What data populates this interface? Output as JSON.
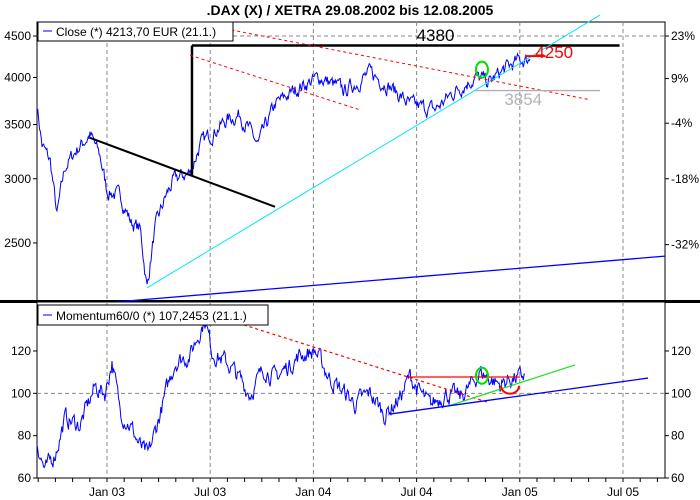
{
  "chart_data": [
    {
      "type": "line",
      "title": ".DAX (X) / XETRA 29.08.2002 bis 12.08.2005",
      "legend": "Close (*) 4213,70 EUR (21.1.)",
      "legend_placement": "top-left",
      "x_unit": "months since Jan 2003",
      "x_ticks": [
        {
          "m": 0,
          "label": "Jan 03"
        },
        {
          "m": 6,
          "label": "Jul 03"
        },
        {
          "m": 12,
          "label": "Jan 04"
        },
        {
          "m": 18,
          "label": "Jul 04"
        },
        {
          "m": 24,
          "label": "Jan 05"
        },
        {
          "m": 30,
          "label": "Jul 05"
        }
      ],
      "y_scale": "log",
      "ylim": [
        2050,
        4600
      ],
      "y_ticks_left": [
        4500,
        4000,
        3500,
        3000,
        2500
      ],
      "y_ticks_right": [
        {
          "v": 4500,
          "label": "23%"
        },
        {
          "v": 3988,
          "label": "9%"
        },
        {
          "v": 3513,
          "label": "-4%"
        },
        {
          "v": 3000,
          "label": "-18%"
        },
        {
          "v": 2488,
          "label": "-32%"
        }
      ],
      "grid_h": [
        4500
      ],
      "series": [
        {
          "name": "Close",
          "color": "#0000ff",
          "points": [
            [
              -4.07,
              3700
            ],
            [
              -3.78,
              3300
            ],
            [
              -3.3,
              3150
            ],
            [
              -2.91,
              2700
            ],
            [
              -2.44,
              3100
            ],
            [
              -1.8,
              3250
            ],
            [
              -0.99,
              3400
            ],
            [
              -0.41,
              3200
            ],
            [
              0,
              2900
            ],
            [
              0.8,
              2850
            ],
            [
              1.4,
              2650
            ],
            [
              1.92,
              2600
            ],
            [
              2.33,
              2200
            ],
            [
              2.79,
              2600
            ],
            [
              3.4,
              2850
            ],
            [
              3.95,
              3000
            ],
            [
              4.83,
              3050
            ],
            [
              5.41,
              3300
            ],
            [
              5.99,
              3400
            ],
            [
              7.0,
              3550
            ],
            [
              7.73,
              3600
            ],
            [
              8.78,
              3300
            ],
            [
              9.77,
              3700
            ],
            [
              11.22,
              3900
            ],
            [
              12.38,
              4000
            ],
            [
              13.84,
              3850
            ],
            [
              15.29,
              4050
            ],
            [
              16.45,
              3900
            ],
            [
              17.62,
              3700
            ],
            [
              19.07,
              3650
            ],
            [
              20.23,
              3850
            ],
            [
              21.4,
              4000
            ],
            [
              22.27,
              3950
            ],
            [
              23.14,
              4100
            ],
            [
              24.01,
              4200
            ],
            [
              24.59,
              4213.7
            ]
          ]
        }
      ],
      "annotations": {
        "lines": [
          {
            "name": "resistance-4380-line",
            "color": "#000000",
            "width": 2.5,
            "from": [
              4.94,
              4380
            ],
            "to": [
              29.8,
              4380
            ]
          },
          {
            "name": "gap-vertical-line",
            "color": "#000000",
            "width": 2.5,
            "from": [
              4.94,
              3020
            ],
            "to": [
              4.94,
              4380
            ]
          },
          {
            "name": "black-downtrend-line",
            "color": "#000000",
            "width": 2,
            "from": [
              -0.99,
              3370
            ],
            "to": [
              9.77,
              2770
            ]
          },
          {
            "name": "cyan-uptrend-line",
            "color": "#00e5ff",
            "width": 1,
            "from": [
              2.33,
              2201
            ],
            "to": [
              28.66,
              4776
            ]
          },
          {
            "name": "blue-long-trend-line",
            "color": "#0000ff",
            "width": 1.3,
            "from": [
              -2.91,
              2085
            ],
            "to": [
              32.44,
              2408
            ]
          },
          {
            "name": "red-dashed-upper-line",
            "color": "#ff0000",
            "width": 1,
            "dash": true,
            "from": [
              4.83,
              4684
            ],
            "to": [
              28.08,
              3755
            ]
          },
          {
            "name": "red-dashed-lower-line",
            "color": "#ff0000",
            "width": 1,
            "dash": true,
            "from": [
              4.83,
              4261
            ],
            "to": [
              14.71,
              3648
            ]
          },
          {
            "name": "gray-3854-line",
            "color": "#b0b0b0",
            "width": 1.3,
            "from": [
              21.4,
              3854
            ],
            "to": [
              28.66,
              3854
            ]
          },
          {
            "name": "red-4250-marker-line",
            "color": "#ff0000",
            "width": 2,
            "from": [
              24.3,
              4250
            ],
            "to": [
              25.5,
              4250
            ]
          }
        ],
        "labels": [
          {
            "name": "label-4380",
            "text": "4380",
            "color": "#000000",
            "at": [
              19.1,
              4440
            ]
          },
          {
            "name": "label-4250",
            "text": "4250",
            "color": "#ff0000",
            "at": [
              26.0,
              4230
            ]
          },
          {
            "name": "label-3854",
            "text": "3854",
            "color": "#b4b4b4",
            "at": [
              24.2,
              3700
            ]
          }
        ],
        "circles": [
          {
            "name": "green-breakout-circle",
            "color": "#00e000",
            "at": [
              21.8,
              4090
            ]
          }
        ]
      }
    },
    {
      "type": "line",
      "legend": "Momentum60/0 (*) 107,2453 (21.1.)",
      "legend_placement": "top-left",
      "y_scale": "linear",
      "ylim": [
        60,
        141.7
      ],
      "y_ticks": [
        120,
        100,
        80,
        60
      ],
      "grid_h": [
        100
      ],
      "series": [
        {
          "name": "Momentum60/0",
          "color": "#0000ff",
          "points": [
            [
              -4.07,
              77
            ],
            [
              -3.6,
              63
            ],
            [
              -3.0,
              72
            ],
            [
              -2.44,
              88
            ],
            [
              -1.57,
              85
            ],
            [
              -0.7,
              103
            ],
            [
              -0.12,
              100
            ],
            [
              0.29,
              115
            ],
            [
              0.76,
              92
            ],
            [
              1.34,
              85
            ],
            [
              1.92,
              75
            ],
            [
              2.38,
              70
            ],
            [
              3.08,
              90
            ],
            [
              3.95,
              115
            ],
            [
              4.83,
              118
            ],
            [
              5.41,
              130
            ],
            [
              5.7,
              135
            ],
            [
              6.1,
              120
            ],
            [
              7.15,
              113
            ],
            [
              8.31,
              100
            ],
            [
              9.19,
              112
            ],
            [
              9.77,
              107
            ],
            [
              11.22,
              118
            ],
            [
              12.09,
              120
            ],
            [
              12.96,
              107
            ],
            [
              13.84,
              100
            ],
            [
              14.42,
              95
            ],
            [
              15.29,
              100
            ],
            [
              16.16,
              90
            ],
            [
              17.03,
              98
            ],
            [
              17.62,
              108
            ],
            [
              18.2,
              100
            ],
            [
              18.78,
              94
            ],
            [
              19.65,
              100
            ],
            [
              20.52,
              98
            ],
            [
              21.1,
              103
            ],
            [
              21.69,
              110
            ],
            [
              22.27,
              107
            ],
            [
              22.85,
              104
            ],
            [
              23.43,
              107
            ],
            [
              24.01,
              107
            ],
            [
              24.3,
              109
            ]
          ]
        }
      ],
      "annotations": {
        "lines": [
          {
            "name": "momentum-red-dotted-downtrend",
            "color": "#ff0000",
            "width": 1.2,
            "dash": true,
            "from": [
              7.62,
              133.2
            ],
            "to": [
              22.09,
              95.9
            ]
          },
          {
            "name": "momentum-red-resistance-line",
            "color": "#ff0000",
            "width": 1.2,
            "from": [
              17.5,
              107.7
            ],
            "to": [
              24.01,
              107.7
            ]
          },
          {
            "name": "momentum-green-uptrend",
            "color": "#22dd22",
            "width": 1.2,
            "from": [
              19.83,
              94.0
            ],
            "to": [
              27.21,
              113.4
            ]
          },
          {
            "name": "momentum-blue-uptrend",
            "color": "#0000ff",
            "width": 1.3,
            "from": [
              16.45,
              90.2
            ],
            "to": [
              31.45,
              107.2
            ]
          }
        ],
        "circles": [
          {
            "name": "momentum-green-circle",
            "color": "#00e000",
            "at": [
              21.8,
              108.3
            ]
          }
        ],
        "arcs": [
          {
            "name": "momentum-red-arc",
            "color": "#ff0000",
            "at": [
              23.43,
              103.6
            ]
          }
        ]
      }
    }
  ]
}
